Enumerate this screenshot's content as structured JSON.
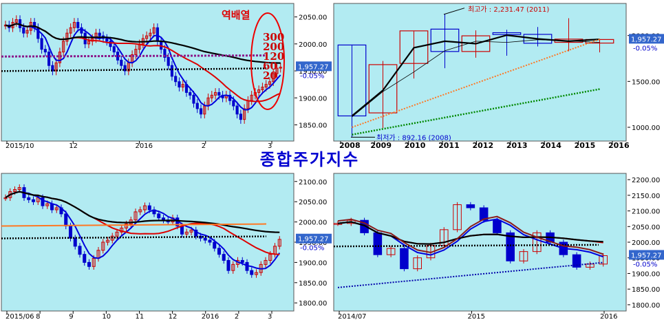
{
  "title": "종합주가지수",
  "price_badge": {
    "value": "1,957.27",
    "change": "-0.05%"
  },
  "chart_data": [
    {
      "type": "candlestick",
      "panel": "daily-6mo",
      "annotation": "역배열",
      "ma_labels": [
        "300",
        "200",
        "120",
        "60",
        "20"
      ],
      "x_ticks": [
        "2015/10",
        "12",
        "2016",
        "2",
        "3"
      ],
      "y_ticks": [
        1850,
        1900,
        1950,
        2000,
        2050
      ],
      "ylim": [
        1820,
        2075
      ],
      "close": [
        2035,
        2030,
        2040,
        2045,
        2030,
        2020,
        2025,
        2040,
        2030,
        2010,
        1990,
        1985,
        1960,
        1950,
        1965,
        1985,
        2005,
        2020,
        2030,
        2040,
        2030,
        2020,
        2000,
        2005,
        2010,
        2020,
        2015,
        2010,
        2005,
        1995,
        1985,
        1970,
        1960,
        1950,
        1965,
        1980,
        1990,
        2000,
        2010,
        2015,
        2020,
        2030,
        2005,
        1990,
        1975,
        1960,
        1940,
        1930,
        1920,
        1925,
        1910,
        1905,
        1890,
        1880,
        1870,
        1885,
        1900,
        1905,
        1910,
        1905,
        1900,
        1905,
        1895,
        1885,
        1870,
        1860,
        1880,
        1895,
        1905,
        1910,
        1915,
        1920,
        1925,
        1930,
        1945,
        1955,
        1957
      ]
    },
    {
      "type": "candlestick",
      "panel": "yearly",
      "x_ticks": [
        "2008",
        "2009",
        "2010",
        "2011",
        "2012",
        "2013",
        "2014",
        "2015",
        "2016"
      ],
      "y_ticks": [
        1000,
        1500,
        2000
      ],
      "ylim": [
        850,
        2350
      ],
      "high_note": "최고가 : 2,231.47 (2011)",
      "low_note": "최저가 : 892.16 (2008)",
      "candles": [
        {
          "x": "2008",
          "open": 1897,
          "close": 1124,
          "high": 1901,
          "low": 892
        },
        {
          "x": "2009",
          "open": 1157,
          "close": 1683,
          "high": 1723,
          "low": 992
        },
        {
          "x": "2010",
          "open": 1696,
          "close": 2051,
          "high": 2052,
          "low": 1532
        },
        {
          "x": "2011",
          "open": 2070,
          "close": 1826,
          "high": 2231,
          "low": 1644
        },
        {
          "x": "2012",
          "open": 1826,
          "close": 1997,
          "high": 2057,
          "low": 1758
        },
        {
          "x": "2013",
          "open": 2031,
          "close": 2011,
          "high": 2063,
          "low": 1780
        },
        {
          "x": "2014",
          "open": 2013,
          "close": 1916,
          "high": 2093,
          "low": 1881
        },
        {
          "x": "2015",
          "open": 1926,
          "close": 1961,
          "high": 2189,
          "low": 1829
        },
        {
          "x": "2016",
          "open": 1918,
          "close": 1957,
          "high": 1960,
          "low": 1817
        }
      ]
    },
    {
      "type": "candlestick",
      "panel": "daily-9mo",
      "x_ticks": [
        "2015/06",
        "8",
        "9",
        "10",
        "11",
        "12",
        "2016",
        "2",
        "3"
      ],
      "y_ticks": [
        1800,
        1850,
        1900,
        1950,
        2000,
        2050,
        2100
      ],
      "ylim": [
        1780,
        2120
      ],
      "close": [
        2060,
        2075,
        2080,
        2085,
        2060,
        2055,
        2050,
        2060,
        2040,
        2045,
        2030,
        2035,
        2020,
        1990,
        1960,
        1940,
        1920,
        1900,
        1890,
        1910,
        1930,
        1950,
        1955,
        1965,
        1975,
        1985,
        1995,
        2005,
        2025,
        2030,
        2040,
        2030,
        2020,
        2010,
        2005,
        2000,
        2010,
        1990,
        1970,
        1975,
        1980,
        1965,
        1960,
        1955,
        1950,
        1935,
        1920,
        1905,
        1880,
        1895,
        1905,
        1900,
        1880,
        1870,
        1875,
        1895,
        1905,
        1920,
        1940,
        1957
      ]
    },
    {
      "type": "candlestick",
      "panel": "monthly",
      "x_ticks": [
        "2014/07",
        "2015",
        "2016"
      ],
      "y_ticks": [
        1800,
        1850,
        1900,
        1950,
        2000,
        2050,
        2100,
        2150,
        2200
      ],
      "ylim": [
        1780,
        2220
      ],
      "close": [
        2060,
        2070,
        2030,
        1960,
        1980,
        1915,
        1950,
        1990,
        2040,
        2120,
        2110,
        2070,
        2030,
        1940,
        1970,
        2030,
        2000,
        1960,
        1920,
        1930,
        1957
      ]
    }
  ]
}
